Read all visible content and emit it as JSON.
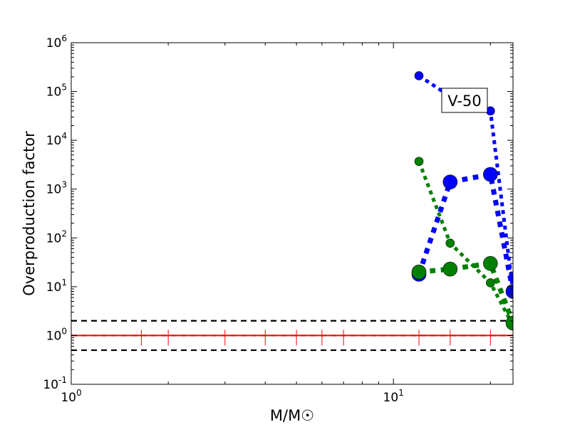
{
  "chart_data": {
    "type": "line",
    "x_scale": "log",
    "y_scale": "log",
    "xlim": [
      1,
      23.5
    ],
    "ylim": [
      0.1,
      1000000
    ],
    "xlabel": "M/M☉",
    "ylabel": "Overproduction factor",
    "x_ticks": [
      {
        "value": 1,
        "base": "10",
        "exp": "0"
      },
      {
        "value": 10,
        "base": "10",
        "exp": "1"
      }
    ],
    "y_ticks": [
      {
        "value": 0.1,
        "base": "10",
        "exp": "-1"
      },
      {
        "value": 1,
        "base": "10",
        "exp": "0"
      },
      {
        "value": 10,
        "base": "10",
        "exp": "1"
      },
      {
        "value": 100,
        "base": "10",
        "exp": "2"
      },
      {
        "value": 1000,
        "base": "10",
        "exp": "3"
      },
      {
        "value": 10000,
        "base": "10",
        "exp": "4"
      },
      {
        "value": 100000,
        "base": "10",
        "exp": "5"
      },
      {
        "value": 1000000,
        "base": "10",
        "exp": "6"
      }
    ],
    "annotation": "V-50",
    "reference_lines": [
      {
        "y": 2,
        "style": "dashed",
        "color": "#000000"
      },
      {
        "y": 1,
        "style": "dashed",
        "color": "#000000"
      },
      {
        "y": 0.5,
        "style": "dashed",
        "color": "#000000"
      },
      {
        "y": 1,
        "style": "solid",
        "color": "#ff0000"
      }
    ],
    "red_ticks_x": [
      1.65,
      2,
      3,
      4,
      5,
      6,
      7,
      12,
      15,
      20
    ],
    "series": [
      {
        "color": "#0000ff",
        "width": 5,
        "marker": 6,
        "x": [
          12,
          15,
          20,
          23.5
        ],
        "y": [
          210000,
          80000,
          40000,
          8
        ]
      },
      {
        "color": "#0000ff",
        "width": 7,
        "marker": 10,
        "x": [
          12,
          15,
          20,
          23.5
        ],
        "y": [
          18,
          1400,
          2000,
          8
        ]
      },
      {
        "color": "#008000",
        "width": 5,
        "marker": 6,
        "x": [
          12,
          15,
          20,
          23.5
        ],
        "y": [
          3700,
          78,
          12,
          1.6
        ]
      },
      {
        "color": "#008000",
        "width": 7,
        "marker": 10,
        "x": [
          12,
          15,
          20,
          23.5
        ],
        "y": [
          20,
          23,
          30,
          1.8
        ]
      }
    ]
  }
}
